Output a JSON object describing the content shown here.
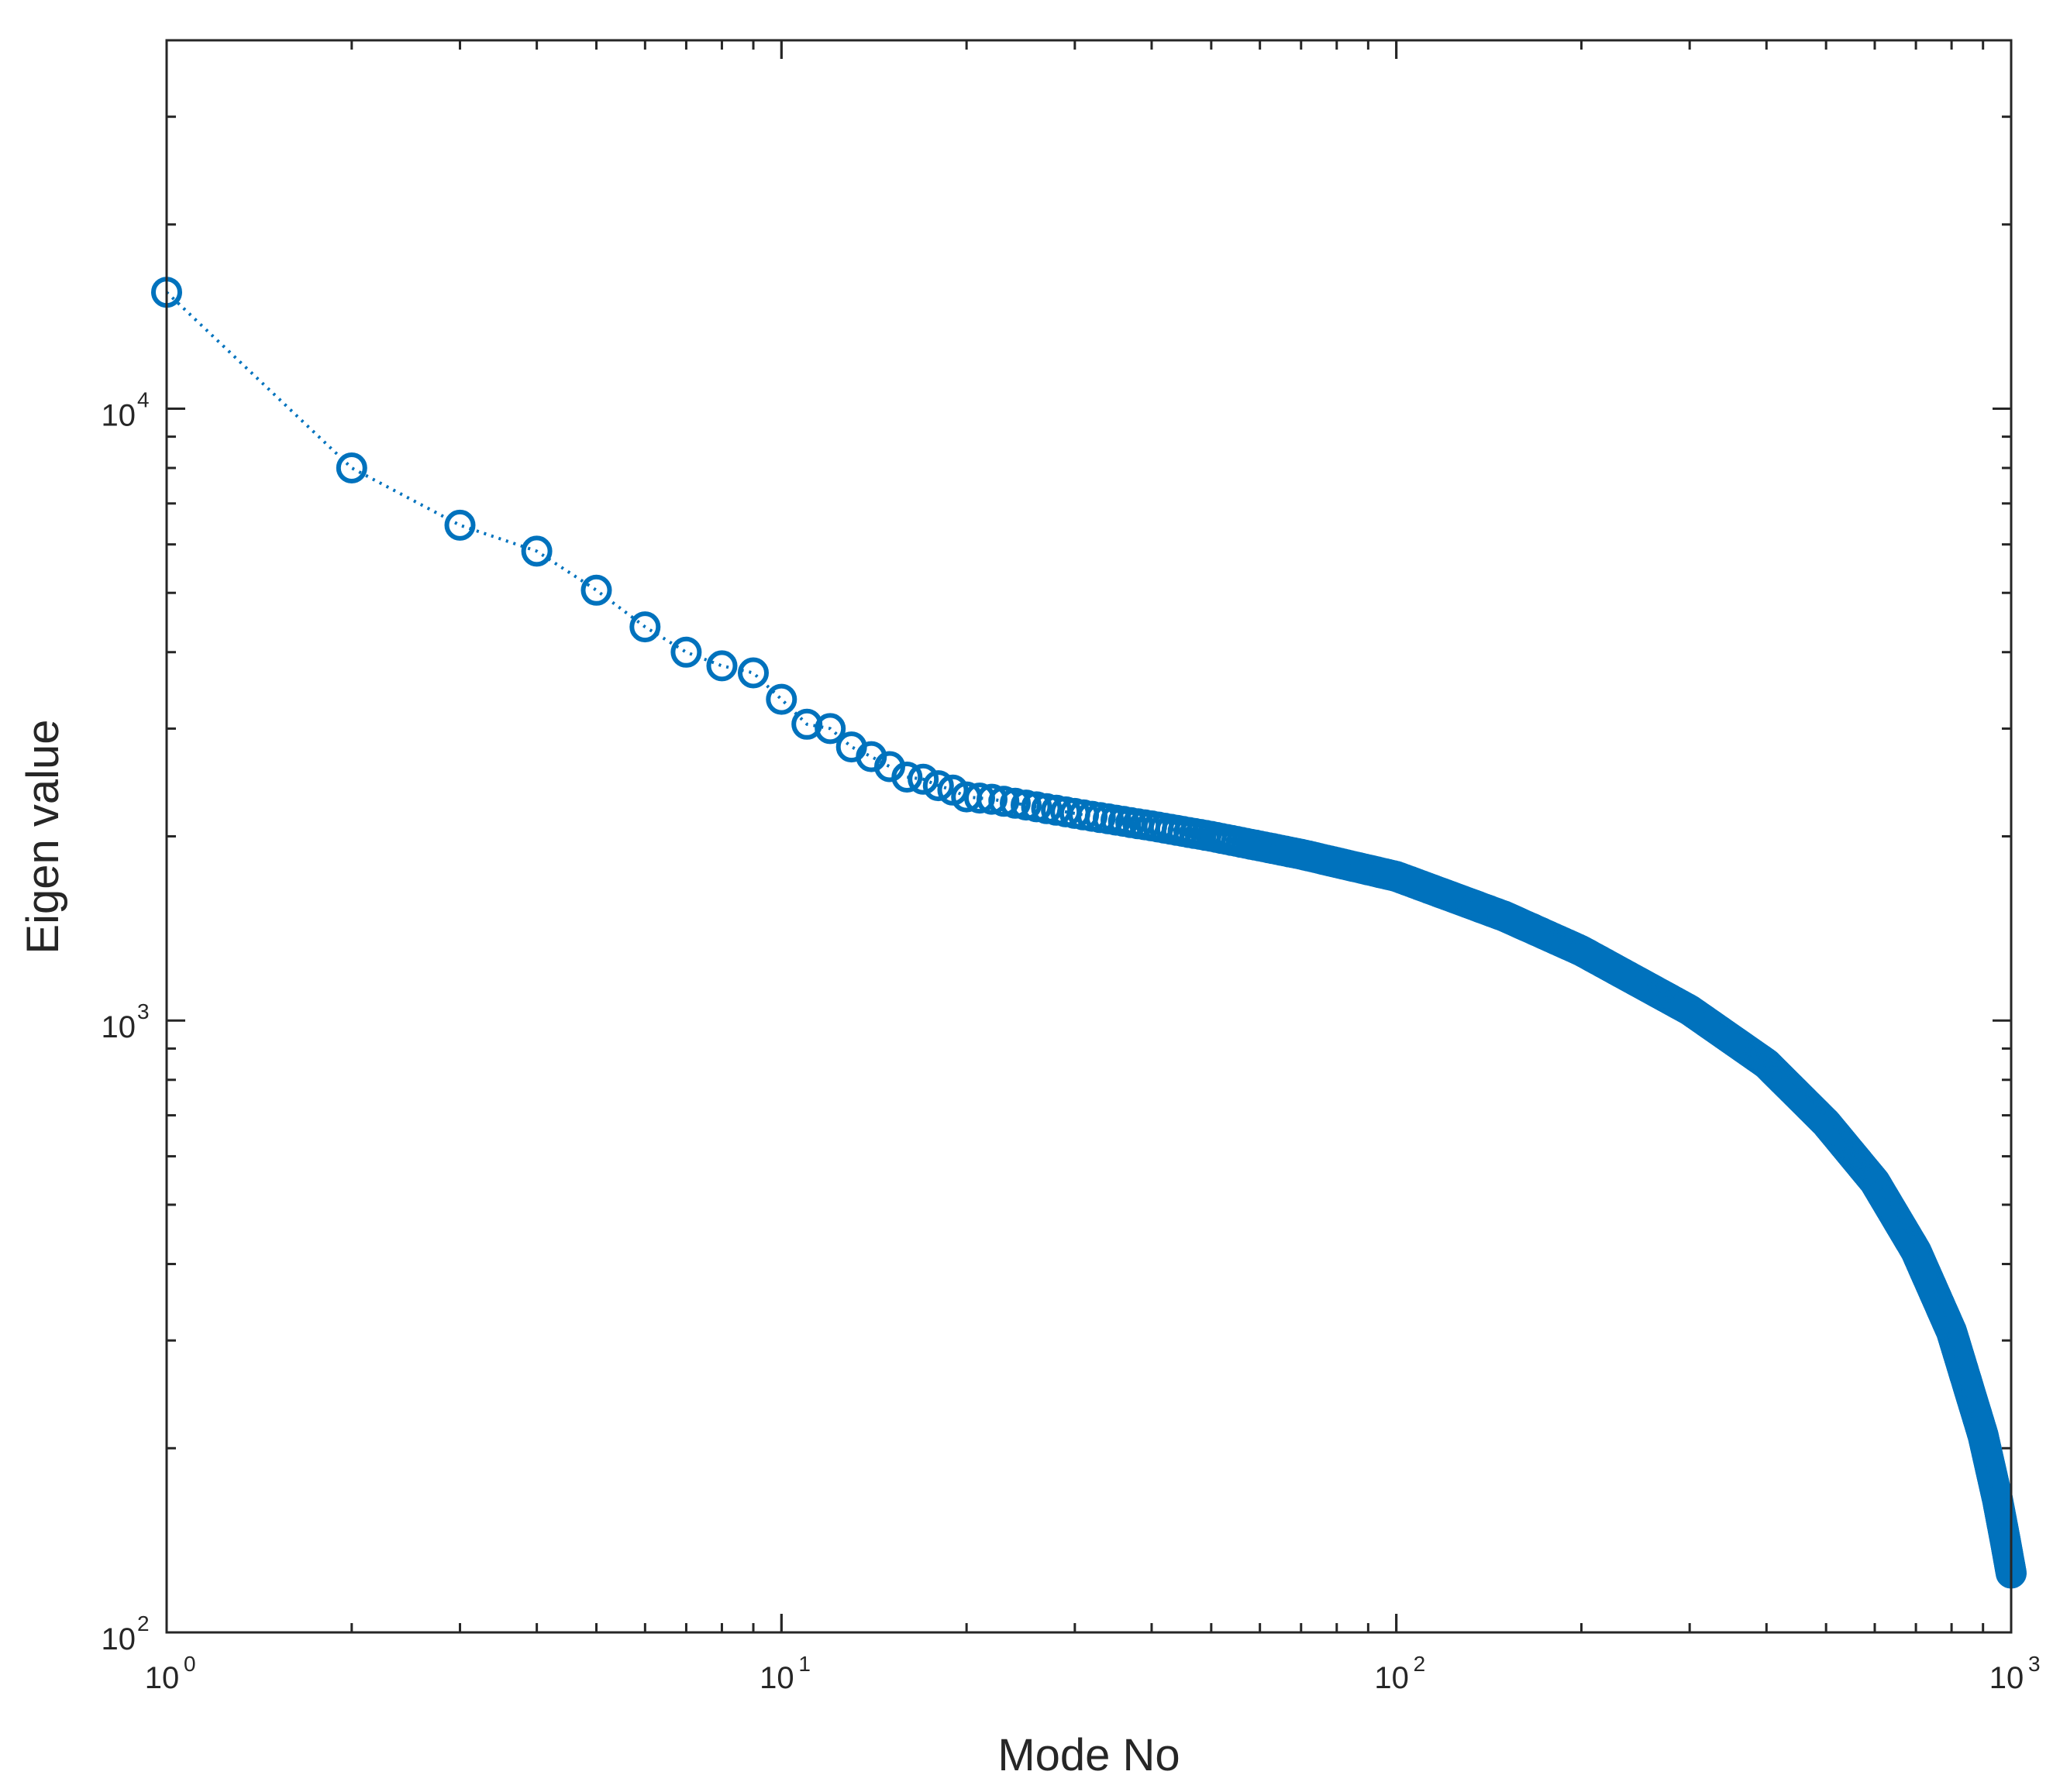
{
  "chart_data": {
    "type": "scatter",
    "title": "",
    "xlabel": "Mode No",
    "ylabel": "Eigen value",
    "x_scale": "log",
    "y_scale": "log",
    "xlim": [
      1,
      1000
    ],
    "ylim": [
      100,
      40000
    ],
    "grid": false,
    "legend": "none",
    "line_style": "dotted",
    "marker": "open-circle",
    "series_color": "#0072BD",
    "x_ticks": [
      {
        "base": "10",
        "exp": "0",
        "value": 1
      },
      {
        "base": "10",
        "exp": "1",
        "value": 10
      },
      {
        "base": "10",
        "exp": "2",
        "value": 100
      },
      {
        "base": "10",
        "exp": "3",
        "value": 1000
      }
    ],
    "y_ticks": [
      {
        "base": "10",
        "exp": "2",
        "value": 100
      },
      {
        "base": "10",
        "exp": "3",
        "value": 1000
      },
      {
        "base": "10",
        "exp": "4",
        "value": 10000
      }
    ],
    "series": [
      {
        "x": [
          1,
          2,
          3,
          4,
          5,
          6,
          7,
          8,
          9,
          10,
          11,
          12,
          13,
          14,
          15,
          16,
          17,
          18,
          19,
          20,
          22,
          25,
          30,
          40,
          50,
          70,
          100,
          150,
          200,
          300,
          400,
          500,
          600,
          700,
          800,
          900,
          950,
          980,
          1000
        ],
        "y": [
          15500,
          8000,
          6450,
          5850,
          5050,
          4400,
          4000,
          3800,
          3700,
          3350,
          3050,
          3000,
          2800,
          2700,
          2600,
          2500,
          2480,
          2420,
          2380,
          2320,
          2300,
          2250,
          2180,
          2080,
          2000,
          1870,
          1720,
          1480,
          1300,
          1040,
          850,
          680,
          545,
          420,
          310,
          210,
          165,
          140,
          125
        ]
      }
    ]
  }
}
